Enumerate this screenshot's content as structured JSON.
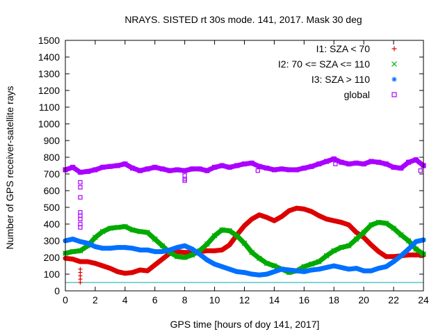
{
  "chart_data": {
    "type": "scatter",
    "title": "NRAYS. SISTED rt 30s mode. 141, 2017. Mask 30 deg",
    "xlabel": "GPS time [hours of doy 141, 2017]",
    "ylabel": "Number of GPS receiver-satellite rays",
    "xlim": [
      0,
      24
    ],
    "ylim": [
      0,
      1500
    ],
    "x_ticks": [
      0,
      2,
      4,
      6,
      8,
      10,
      12,
      14,
      16,
      18,
      20,
      22,
      24
    ],
    "y_ticks": [
      0,
      100,
      200,
      300,
      400,
      500,
      600,
      700,
      800,
      900,
      1000,
      1100,
      1200,
      1300,
      1400,
      1500
    ],
    "legend_position": "top-right",
    "threshold_line": {
      "y": 50,
      "color": "#00aaaa"
    },
    "series": [
      {
        "name": "I1: SZA < 70",
        "marker": "+",
        "color": "#dd0000",
        "x": [
          0,
          0.5,
          1,
          1.5,
          2,
          2.5,
          3,
          3.5,
          4,
          4.5,
          5,
          5.5,
          6,
          6.5,
          7,
          7.5,
          8,
          8.5,
          9,
          9.5,
          10,
          10.5,
          11,
          11.5,
          12,
          12.5,
          13,
          13.5,
          14,
          14.5,
          15,
          15.5,
          16,
          16.5,
          17,
          17.5,
          18,
          18.5,
          19,
          19.5,
          20,
          20.5,
          21,
          21.5,
          22,
          22.5,
          23,
          23.5,
          24
        ],
        "y": [
          195,
          190,
          175,
          175,
          165,
          150,
          135,
          115,
          105,
          110,
          125,
          120,
          155,
          190,
          225,
          235,
          230,
          230,
          235,
          240,
          240,
          245,
          275,
          335,
          390,
          430,
          455,
          440,
          420,
          445,
          480,
          495,
          490,
          475,
          450,
          430,
          420,
          410,
          395,
          350,
          320,
          275,
          235,
          205,
          205,
          210,
          215,
          215,
          215
        ]
      },
      {
        "name": "I2: 70 <= SZA <= 110",
        "marker": "x",
        "color": "#00aa00",
        "x": [
          0,
          0.5,
          1,
          1.5,
          2,
          2.5,
          3,
          3.5,
          4,
          4.5,
          5,
          5.5,
          6,
          6.5,
          7,
          7.5,
          8,
          8.5,
          9,
          9.5,
          10,
          10.5,
          11,
          11.5,
          12,
          12.5,
          13,
          13.5,
          14,
          14.5,
          15,
          15.5,
          16,
          16.5,
          17,
          17.5,
          18,
          18.5,
          19,
          19.5,
          20,
          20.5,
          21,
          21.5,
          22,
          22.5,
          23,
          23.5,
          24
        ],
        "y": [
          225,
          235,
          240,
          270,
          320,
          355,
          375,
          380,
          385,
          365,
          355,
          350,
          310,
          270,
          230,
          205,
          200,
          215,
          240,
          280,
          330,
          365,
          360,
          330,
          285,
          230,
          195,
          165,
          150,
          130,
          110,
          120,
          145,
          160,
          175,
          210,
          240,
          260,
          270,
          310,
          350,
          395,
          410,
          405,
          375,
          335,
          300,
          250,
          220
        ]
      },
      {
        "name": "I3: SZA > 110",
        "marker": "*",
        "color": "#0070ff",
        "x": [
          0,
          0.5,
          1,
          1.5,
          2,
          2.5,
          3,
          3.5,
          4,
          4.5,
          5,
          5.5,
          6,
          6.5,
          7,
          7.5,
          8,
          8.5,
          9,
          9.5,
          10,
          10.5,
          11,
          11.5,
          12,
          12.5,
          13,
          13.5,
          14,
          14.5,
          15,
          15.5,
          16,
          16.5,
          17,
          17.5,
          18,
          18.5,
          19,
          19.5,
          20,
          20.5,
          21,
          21.5,
          22,
          22.5,
          23,
          23.5,
          24
        ],
        "y": [
          300,
          310,
          295,
          285,
          265,
          255,
          255,
          260,
          260,
          255,
          245,
          245,
          235,
          235,
          245,
          260,
          270,
          250,
          220,
          185,
          160,
          145,
          130,
          115,
          110,
          100,
          95,
          100,
          115,
          130,
          125,
          120,
          115,
          125,
          130,
          140,
          150,
          140,
          130,
          135,
          120,
          120,
          135,
          145,
          175,
          210,
          250,
          295,
          305
        ]
      },
      {
        "name": "global",
        "marker": "square",
        "color": "#aa00ff",
        "x": [
          0,
          0.5,
          1,
          1.5,
          2,
          2.5,
          3,
          3.5,
          4,
          4.5,
          5,
          5.5,
          6,
          6.5,
          7,
          7.5,
          8,
          8.5,
          9,
          9.5,
          10,
          10.5,
          11,
          11.5,
          12,
          12.5,
          13,
          13.5,
          14,
          14.5,
          15,
          15.5,
          16,
          16.5,
          17,
          17.5,
          18,
          18.5,
          19,
          19.5,
          20,
          20.5,
          21,
          21.5,
          22,
          22.5,
          23,
          23.5,
          24
        ],
        "y": [
          725,
          740,
          710,
          715,
          725,
          740,
          745,
          750,
          760,
          735,
          720,
          730,
          740,
          730,
          720,
          725,
          720,
          730,
          730,
          720,
          740,
          750,
          740,
          750,
          760,
          765,
          745,
          735,
          725,
          730,
          725,
          725,
          735,
          745,
          760,
          775,
          790,
          770,
          760,
          765,
          760,
          775,
          770,
          760,
          740,
          735,
          770,
          785,
          750
        ]
      }
    ],
    "outliers": {
      "global": {
        "x": [
          1,
          1,
          1,
          1,
          1,
          1,
          1,
          1,
          12.9,
          8,
          8,
          8,
          18.1,
          23.8
        ],
        "y": [
          380,
          400,
          430,
          450,
          470,
          560,
          620,
          650,
          720,
          660,
          670,
          690,
          760,
          720
        ]
      },
      "I1: SZA < 70": {
        "x": [
          1,
          1,
          1,
          1,
          1
        ],
        "y": [
          50,
          70,
          90,
          110,
          130
        ]
      }
    }
  }
}
